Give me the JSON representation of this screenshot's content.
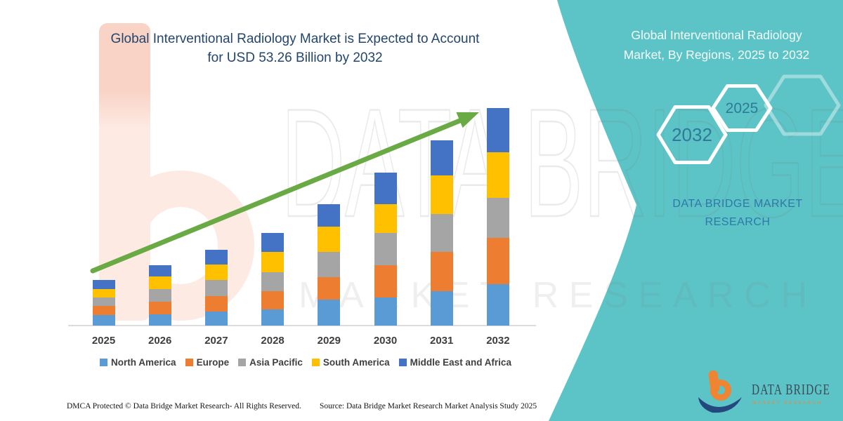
{
  "header": {
    "title_line1": "Global Interventional Radiology Market is Expected to Account",
    "title_line2": "for USD 53.26 Billion by 2032",
    "title_color": "#23466d"
  },
  "chart_data": {
    "type": "bar",
    "stacked": true,
    "title": "Global Interventional Radiology Market is Expected to Account for USD 53.26 Billion by 2032",
    "unit": "USD Billion",
    "categories": [
      "2025",
      "2026",
      "2027",
      "2028",
      "2029",
      "2030",
      "2031",
      "2032"
    ],
    "series": [
      {
        "name": "North America",
        "color": "#5B9BD5",
        "values": [
          2.5,
          2.8,
          3.5,
          4.0,
          6.3,
          6.9,
          8.5,
          10.2
        ]
      },
      {
        "name": "Europe",
        "color": "#ED7D31",
        "values": [
          2.3,
          3.0,
          3.7,
          4.4,
          5.5,
          7.8,
          9.5,
          11.3
        ]
      },
      {
        "name": "Asia Pacific",
        "color": "#A5A5A5",
        "values": [
          2.1,
          3.1,
          3.9,
          4.7,
          6.2,
          8.0,
          9.4,
          9.7
        ]
      },
      {
        "name": "South America",
        "color": "#FFC000",
        "values": [
          2.1,
          3.2,
          3.8,
          4.9,
          6.3,
          7.1,
          9.3,
          11.3
        ]
      },
      {
        "name": "Middle East and Africa",
        "color": "#4472C4",
        "values": [
          2.1,
          2.7,
          3.6,
          4.6,
          5.5,
          7.6,
          8.7,
          10.76
        ]
      }
    ],
    "totals": [
      11.1,
      14.8,
      18.5,
      22.6,
      29.8,
      37.4,
      45.4,
      53.26
    ],
    "ylim": [
      0,
      55
    ],
    "grid": false,
    "legend_position": "bottom",
    "trend_arrow": true,
    "trend_arrow_color": "#6aaa45"
  },
  "sidebar": {
    "background": "#5cc4c6",
    "title_line1": "Global Interventional Radiology",
    "title_line2": "Market, By Regions, 2025 to 2032",
    "hexagon_labels": [
      "2032",
      "2025"
    ],
    "brand_line1": "DATA BRIDGE MARKET",
    "brand_line2": "RESEARCH",
    "brand_color": "#2e78a8"
  },
  "watermark": {
    "brand": "DATA BRIDGE",
    "sub": "MARKET RESEARCH"
  },
  "logo": {
    "brand": "DATA BRIDGE",
    "sub": "MARKET RESEARCH"
  },
  "footer": {
    "dmca": "DMCA Protected © Data Bridge Market Research- All Rights Reserved.",
    "source": "Source: Data Bridge Market Research Market Analysis Study 2025"
  }
}
